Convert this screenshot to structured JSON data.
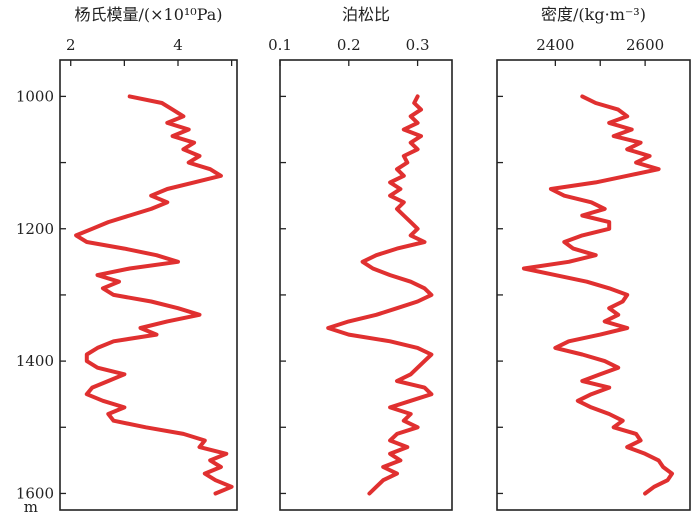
{
  "chart_data": {
    "type": "line",
    "orientation": "depth-log",
    "y_axis": {
      "ticks": [
        1000,
        1200,
        1400,
        1600
      ],
      "tick_labels": [
        "1000",
        "1200",
        "1400",
        "1600"
      ],
      "minor_ticks": [
        1100,
        1300,
        1500
      ],
      "unit": "m",
      "ylim": [
        945,
        1625
      ],
      "inverted": true
    },
    "line_color": "#e03030",
    "panels": [
      {
        "title": "杨氏模量/(×10¹⁰Pa)",
        "xlim": [
          1.8,
          5.1
        ],
        "x_ticks": [
          2,
          3,
          4,
          5
        ],
        "x_tick_labels": [
          "2",
          "",
          "4",
          ""
        ],
        "series": {
          "name": "",
          "depth": [
            1000,
            1010,
            1020,
            1030,
            1040,
            1050,
            1060,
            1070,
            1080,
            1090,
            1100,
            1110,
            1120,
            1130,
            1140,
            1150,
            1160,
            1170,
            1180,
            1190,
            1200,
            1210,
            1220,
            1230,
            1240,
            1250,
            1260,
            1270,
            1280,
            1290,
            1300,
            1310,
            1320,
            1330,
            1340,
            1350,
            1360,
            1370,
            1380,
            1390,
            1400,
            1410,
            1420,
            1430,
            1440,
            1450,
            1460,
            1470,
            1480,
            1490,
            1500,
            1510,
            1520,
            1530,
            1540,
            1550,
            1560,
            1570,
            1580,
            1590,
            1600
          ],
          "values": [
            3.1,
            3.7,
            3.9,
            4.1,
            3.8,
            4.2,
            3.9,
            4.3,
            4.1,
            4.4,
            4.2,
            4.6,
            4.8,
            4.3,
            3.8,
            3.5,
            3.8,
            3.5,
            3.1,
            2.7,
            2.4,
            2.1,
            2.3,
            3.0,
            3.6,
            4.0,
            3.1,
            2.5,
            2.9,
            2.6,
            2.8,
            3.5,
            4.0,
            4.4,
            3.8,
            3.3,
            3.6,
            2.8,
            2.5,
            2.3,
            2.3,
            2.5,
            3.0,
            2.7,
            2.4,
            2.3,
            2.6,
            3.0,
            2.7,
            2.8,
            3.4,
            4.1,
            4.5,
            4.4,
            4.9,
            4.6,
            4.8,
            4.5,
            4.7,
            5.0,
            4.7
          ]
        }
      },
      {
        "title": "泊松比",
        "xlim": [
          0.1,
          0.35
        ],
        "x_ticks": [
          0.1,
          0.2,
          0.3
        ],
        "x_tick_labels": [
          "0.1",
          "0.2",
          "0.3"
        ],
        "series": {
          "name": "",
          "depth": [
            1000,
            1010,
            1020,
            1030,
            1040,
            1050,
            1060,
            1070,
            1080,
            1090,
            1100,
            1110,
            1120,
            1130,
            1140,
            1150,
            1160,
            1170,
            1180,
            1190,
            1200,
            1210,
            1220,
            1230,
            1240,
            1250,
            1260,
            1270,
            1280,
            1290,
            1300,
            1310,
            1320,
            1330,
            1340,
            1350,
            1360,
            1370,
            1380,
            1390,
            1400,
            1410,
            1420,
            1430,
            1440,
            1450,
            1460,
            1470,
            1480,
            1490,
            1500,
            1510,
            1520,
            1530,
            1540,
            1550,
            1560,
            1570,
            1580,
            1590,
            1600
          ],
          "values": [
            0.3,
            0.295,
            0.305,
            0.29,
            0.3,
            0.28,
            0.305,
            0.29,
            0.3,
            0.28,
            0.285,
            0.27,
            0.28,
            0.26,
            0.275,
            0.26,
            0.28,
            0.27,
            0.28,
            0.29,
            0.3,
            0.29,
            0.31,
            0.27,
            0.24,
            0.22,
            0.235,
            0.26,
            0.29,
            0.31,
            0.32,
            0.3,
            0.27,
            0.24,
            0.2,
            0.17,
            0.2,
            0.26,
            0.3,
            0.32,
            0.31,
            0.3,
            0.29,
            0.27,
            0.31,
            0.32,
            0.29,
            0.26,
            0.29,
            0.28,
            0.3,
            0.27,
            0.26,
            0.285,
            0.26,
            0.275,
            0.25,
            0.27,
            0.25,
            0.24,
            0.23
          ]
        }
      },
      {
        "title": "密度/(kg·m⁻³)",
        "xlim": [
          2270,
          2700
        ],
        "x_ticks": [
          2400,
          2500,
          2600
        ],
        "x_tick_labels": [
          "2400",
          "",
          "2600"
        ],
        "series": {
          "name": "",
          "depth": [
            1000,
            1010,
            1020,
            1030,
            1040,
            1050,
            1060,
            1070,
            1080,
            1090,
            1100,
            1110,
            1120,
            1130,
            1140,
            1150,
            1160,
            1170,
            1180,
            1190,
            1200,
            1210,
            1220,
            1230,
            1240,
            1250,
            1260,
            1270,
            1280,
            1290,
            1300,
            1310,
            1320,
            1330,
            1340,
            1350,
            1360,
            1370,
            1380,
            1390,
            1400,
            1410,
            1420,
            1430,
            1440,
            1450,
            1460,
            1470,
            1480,
            1490,
            1500,
            1510,
            1520,
            1530,
            1540,
            1550,
            1560,
            1570,
            1580,
            1590,
            1600
          ],
          "values": [
            2460,
            2490,
            2540,
            2560,
            2520,
            2570,
            2530,
            2590,
            2560,
            2610,
            2580,
            2630,
            2560,
            2490,
            2390,
            2420,
            2480,
            2510,
            2460,
            2520,
            2520,
            2460,
            2420,
            2440,
            2490,
            2430,
            2330,
            2400,
            2470,
            2520,
            2560,
            2550,
            2520,
            2540,
            2510,
            2560,
            2500,
            2430,
            2400,
            2460,
            2510,
            2540,
            2500,
            2460,
            2520,
            2480,
            2450,
            2480,
            2520,
            2550,
            2530,
            2580,
            2590,
            2560,
            2600,
            2630,
            2640,
            2660,
            2650,
            2620,
            2600
          ]
        }
      }
    ]
  }
}
